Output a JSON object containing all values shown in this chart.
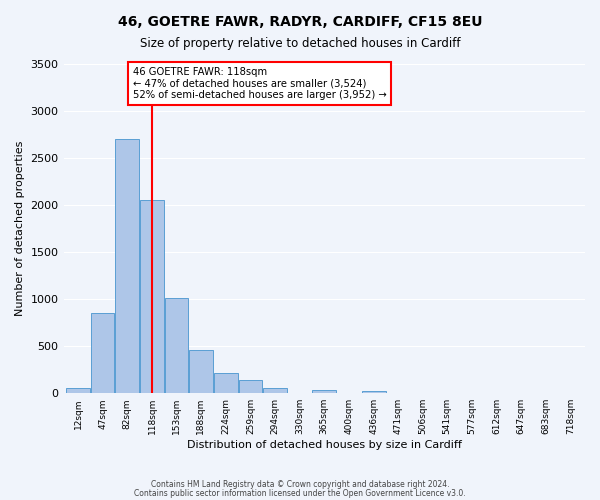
{
  "title": "46, GOETRE FAWR, RADYR, CARDIFF, CF15 8EU",
  "subtitle": "Size of property relative to detached houses in Cardiff",
  "xlabel": "Distribution of detached houses by size in Cardiff",
  "ylabel": "Number of detached properties",
  "bin_labels": [
    "12sqm",
    "47sqm",
    "82sqm",
    "118sqm",
    "153sqm",
    "188sqm",
    "224sqm",
    "259sqm",
    "294sqm",
    "330sqm",
    "365sqm",
    "400sqm",
    "436sqm",
    "471sqm",
    "506sqm",
    "541sqm",
    "577sqm",
    "612sqm",
    "647sqm",
    "683sqm",
    "718sqm"
  ],
  "bin_edges": [
    12,
    47,
    82,
    118,
    153,
    188,
    224,
    259,
    294,
    330,
    365,
    400,
    436,
    471,
    506,
    541,
    577,
    612,
    647,
    683,
    718
  ],
  "bar_heights": [
    60,
    850,
    2700,
    2050,
    1010,
    455,
    210,
    145,
    55,
    0,
    30,
    0,
    25,
    0,
    0,
    0,
    0,
    0,
    0,
    0
  ],
  "bar_color": "#aec6e8",
  "bar_edge_color": "#5a9fd4",
  "vline_x_index": 3,
  "vline_color": "red",
  "annotation_title": "46 GOETRE FAWR: 118sqm",
  "annotation_line1": "← 47% of detached houses are smaller (3,524)",
  "annotation_line2": "52% of semi-detached houses are larger (3,952) →",
  "annotation_box_color": "white",
  "annotation_box_edge": "red",
  "ylim": [
    0,
    3500
  ],
  "yticks": [
    0,
    500,
    1000,
    1500,
    2000,
    2500,
    3000,
    3500
  ],
  "footer_line1": "Contains HM Land Registry data © Crown copyright and database right 2024.",
  "footer_line2": "Contains public sector information licensed under the Open Government Licence v3.0.",
  "background_color": "#f0f4fb"
}
